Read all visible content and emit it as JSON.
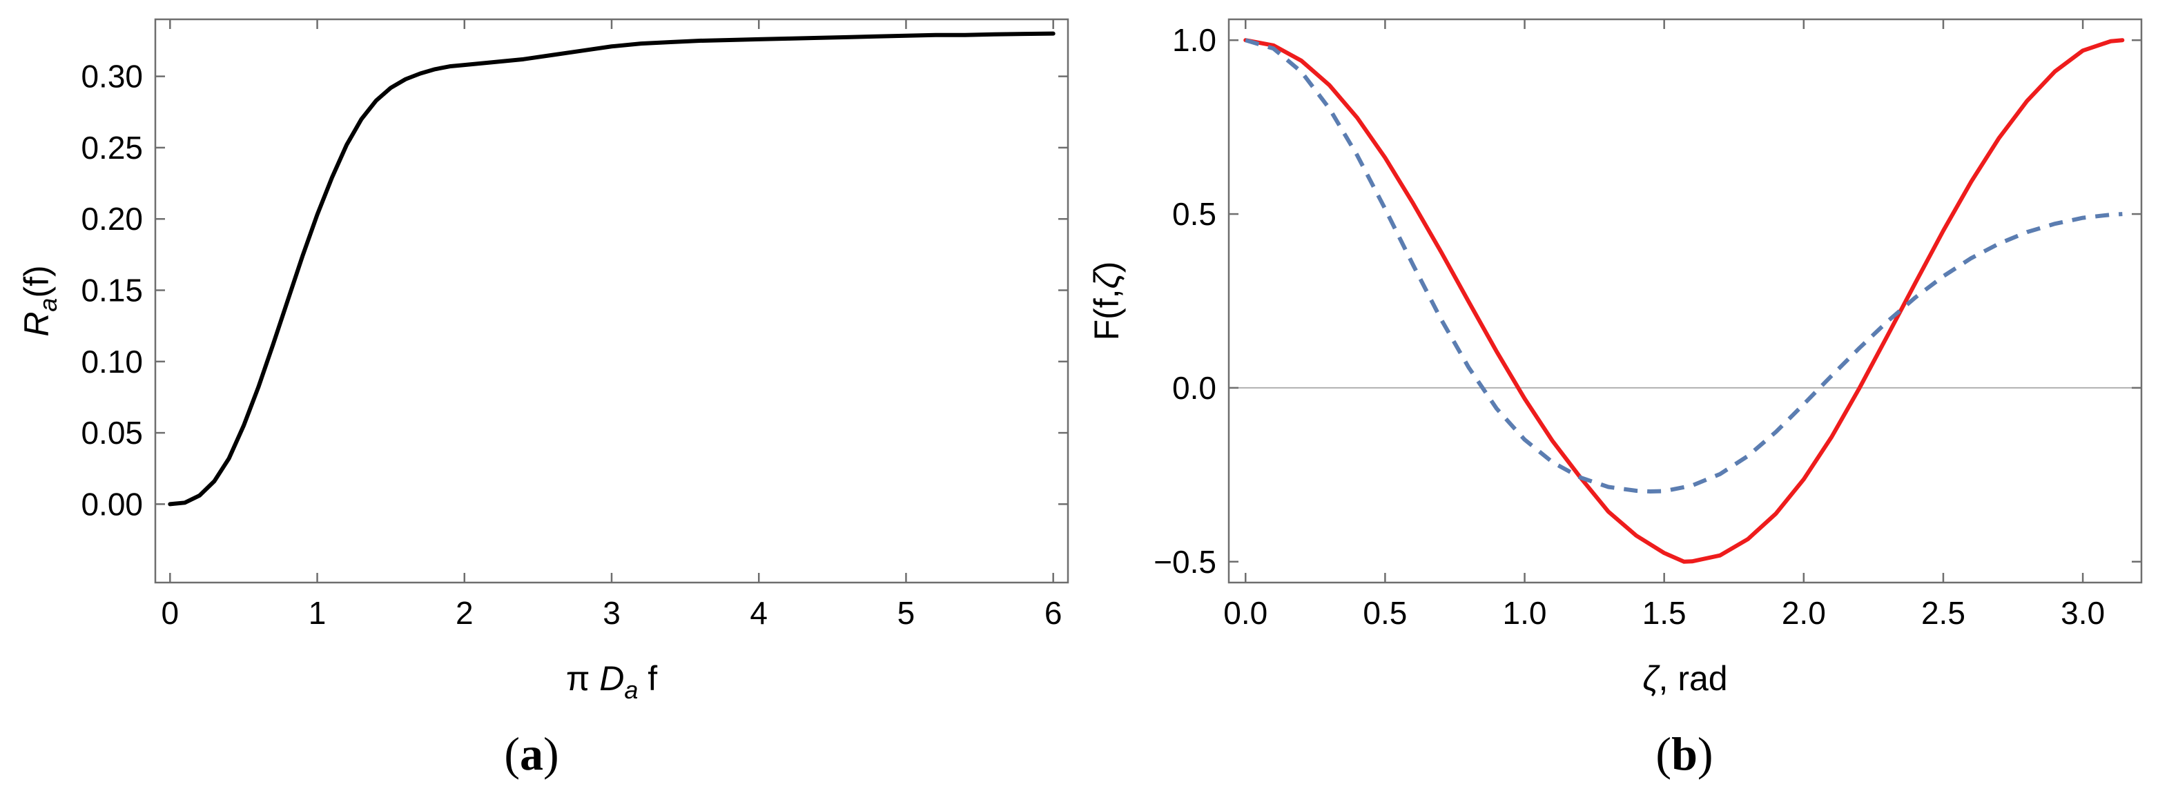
{
  "chart_data": [
    {
      "type": "line",
      "panel_label": "(a)",
      "xlabel": {
        "pre": "π ",
        "var": "D",
        "sub": "a",
        "post": " f"
      },
      "ylabel": {
        "var": "R",
        "sub": "a",
        "post": "(f)"
      },
      "xlim": [
        -0.1,
        6.1
      ],
      "ylim": [
        -0.055,
        0.34
      ],
      "xticks": [
        0,
        1,
        2,
        3,
        4,
        5,
        6
      ],
      "xtick_labels": [
        "0",
        "1",
        "2",
        "3",
        "4",
        "5",
        "6"
      ],
      "yticks": [
        0.0,
        0.05,
        0.1,
        0.15,
        0.2,
        0.25,
        0.3
      ],
      "ytick_labels": [
        "0.00",
        "0.05",
        "0.10",
        "0.15",
        "0.20",
        "0.25",
        "0.30"
      ],
      "series": [
        {
          "color": "#000000",
          "style": "solid",
          "x": [
            0,
            0.1,
            0.2,
            0.3,
            0.4,
            0.5,
            0.6,
            0.7,
            0.8,
            0.9,
            1.0,
            1.1,
            1.2,
            1.3,
            1.4,
            1.5,
            1.6,
            1.7,
            1.8,
            1.9,
            2.0,
            2.2,
            2.4,
            2.6,
            2.8,
            3.0,
            3.2,
            3.4,
            3.6,
            3.8,
            4.0,
            4.2,
            4.4,
            4.6,
            4.8,
            5.0,
            5.2,
            5.4,
            5.6,
            5.8,
            6.0
          ],
          "y": [
            0.0,
            0.001,
            0.006,
            0.016,
            0.032,
            0.055,
            0.082,
            0.112,
            0.143,
            0.174,
            0.203,
            0.229,
            0.252,
            0.27,
            0.283,
            0.292,
            0.298,
            0.302,
            0.305,
            0.307,
            0.308,
            0.31,
            0.312,
            0.315,
            0.318,
            0.321,
            0.323,
            0.324,
            0.325,
            0.3255,
            0.326,
            0.3265,
            0.327,
            0.3275,
            0.328,
            0.3285,
            0.329,
            0.329,
            0.3295,
            0.3298,
            0.33
          ]
        }
      ]
    },
    {
      "type": "line",
      "panel_label": "(b)",
      "xlabel": {
        "pre": "",
        "var": "ζ",
        "sub": "",
        "post": ", rad"
      },
      "ylabel": {
        "pre": "F(f,",
        "var": "ζ",
        "post": ")"
      },
      "xlim": [
        -0.06,
        3.21
      ],
      "ylim": [
        -0.56,
        1.06
      ],
      "xticks": [
        0.0,
        0.5,
        1.0,
        1.5,
        2.0,
        2.5,
        3.0
      ],
      "xtick_labels": [
        "0.0",
        "0.5",
        "1.0",
        "1.5",
        "2.0",
        "2.5",
        "3.0"
      ],
      "yticks": [
        -0.5,
        0.0,
        0.5,
        1.0
      ],
      "ytick_labels": [
        "−0.5",
        "0.0",
        "0.5",
        "1.0"
      ],
      "zero_line": true,
      "series": [
        {
          "color": "#ee1c1c",
          "style": "solid",
          "x": [
            0,
            0.1,
            0.2,
            0.3,
            0.4,
            0.5,
            0.6,
            0.7,
            0.8,
            0.9,
            1.0,
            1.1,
            1.2,
            1.3,
            1.4,
            1.5,
            1.571,
            1.6,
            1.7,
            1.8,
            1.9,
            2.0,
            2.1,
            2.2,
            2.3,
            2.4,
            2.5,
            2.6,
            2.7,
            2.8,
            2.9,
            3.0,
            3.1,
            3.1416
          ],
          "y": [
            1.0,
            0.985,
            0.941,
            0.871,
            0.777,
            0.662,
            0.531,
            0.392,
            0.247,
            0.104,
            -0.031,
            -0.153,
            -0.258,
            -0.356,
            -0.425,
            -0.475,
            -0.5,
            -0.499,
            -0.482,
            -0.435,
            -0.362,
            -0.263,
            -0.141,
            0.0,
            0.15,
            0.302,
            0.452,
            0.593,
            0.719,
            0.825,
            0.91,
            0.97,
            0.997,
            1.0
          ]
        },
        {
          "color": "#5b7db1",
          "style": "dashed",
          "x": [
            0,
            0.1,
            0.2,
            0.3,
            0.4,
            0.5,
            0.6,
            0.7,
            0.8,
            0.9,
            1.0,
            1.1,
            1.2,
            1.3,
            1.4,
            1.45,
            1.5,
            1.6,
            1.7,
            1.8,
            1.9,
            2.0,
            2.1,
            2.2,
            2.3,
            2.4,
            2.5,
            2.6,
            2.7,
            2.8,
            2.9,
            3.0,
            3.1,
            3.1416
          ],
          "y": [
            1.0,
            0.976,
            0.909,
            0.804,
            0.669,
            0.515,
            0.354,
            0.198,
            0.058,
            -0.06,
            -0.149,
            -0.214,
            -0.258,
            -0.285,
            -0.296,
            -0.298,
            -0.297,
            -0.281,
            -0.248,
            -0.196,
            -0.127,
            -0.047,
            0.035,
            0.115,
            0.191,
            0.26,
            0.321,
            0.373,
            0.415,
            0.448,
            0.472,
            0.489,
            0.498,
            0.5
          ]
        }
      ]
    }
  ]
}
